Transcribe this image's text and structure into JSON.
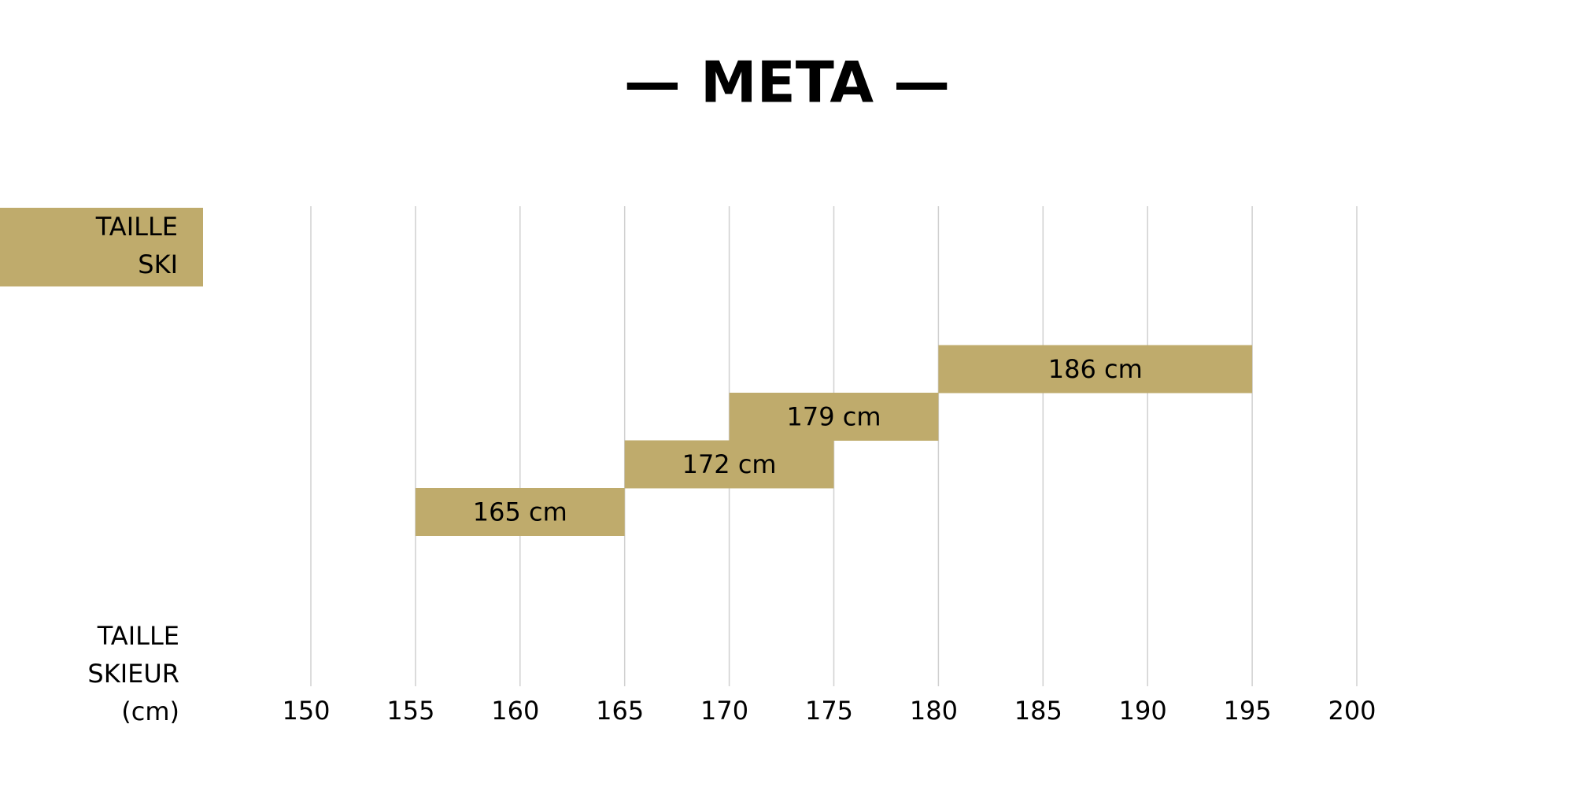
{
  "chart_data": {
    "type": "range",
    "title": "— META —",
    "y_label": [
      "TAILLE",
      "SKI"
    ],
    "x_label": [
      "TAILLE",
      "SKIEUR",
      "(cm)"
    ],
    "starts": [
      155,
      165,
      170,
      180
    ],
    "ends": [
      165,
      175,
      180,
      195
    ],
    "values": [
      165,
      172,
      179,
      186
    ],
    "value_labels": [
      "165 cm",
      "172 cm",
      "179 cm",
      "186 cm"
    ],
    "color": "#bfab6c",
    "xlim": [
      150,
      200
    ],
    "xticks": [
      150,
      155,
      160,
      165,
      170,
      175,
      180,
      185,
      190,
      195,
      200
    ],
    "grid": true
  }
}
